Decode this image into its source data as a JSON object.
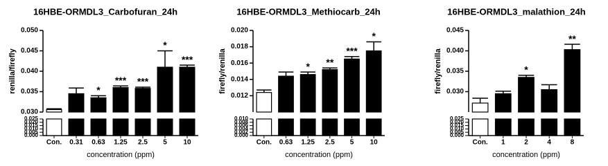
{
  "chart_data": [
    {
      "type": "bar",
      "title": "16HBE-ORMDL3_Carbofuran_24h",
      "x_label": "concentration (ppm)",
      "y_label": "renilla/firefly",
      "categories": [
        "Con.",
        "0.31",
        "0.63",
        "1.25",
        "2.5",
        "5",
        "10"
      ],
      "values": [
        0.0306,
        0.0345,
        0.0335,
        0.036,
        0.0358,
        0.041,
        0.041
      ],
      "errors": [
        0.0002,
        0.0014,
        0.0005,
        0.0004,
        0.0003,
        0.004,
        0.0005
      ],
      "annotations": [
        null,
        null,
        "*",
        "***",
        "***",
        "*",
        "***"
      ],
      "bar_colors": [
        "#ffffff",
        "#000000",
        "#000000",
        "#000000",
        "#000000",
        "#000000",
        "#000000"
      ],
      "ylim": [
        0.03,
        0.05
      ],
      "yticks": [
        {
          "value": 0.03,
          "label": "0.030"
        },
        {
          "value": 0.035,
          "label": "0.035"
        },
        {
          "value": 0.04,
          "label": "0.040"
        },
        {
          "value": 0.045,
          "label": "0.045"
        },
        {
          "value": 0.05,
          "label": "0.050"
        }
      ],
      "lower_ylim": [
        0,
        0.025
      ],
      "lower_yticks": [
        {
          "value": 0.025,
          "label": "0.025"
        },
        {
          "value": 0.02,
          "label": "0.020"
        },
        {
          "value": 0.015,
          "label": "0.015"
        },
        {
          "value": 0.01,
          "label": "0.010"
        },
        {
          "value": 0.005,
          "label": "0.005"
        },
        {
          "value": 0,
          "label": "0.000"
        }
      ]
    },
    {
      "type": "bar",
      "title": "16HBE-ORMDL3_Methiocarb_24h",
      "x_label": "concentration (ppm)",
      "y_label": "firefly/renilla",
      "categories": [
        "Con.",
        "0.63",
        "1.25",
        "2.5",
        "5",
        "10"
      ],
      "values": [
        0.0124,
        0.0144,
        0.0146,
        0.0152,
        0.0165,
        0.0175
      ],
      "errors": [
        0.0003,
        0.0005,
        0.0003,
        0.0002,
        0.0003,
        0.0011
      ],
      "annotations": [
        null,
        null,
        "*",
        "**",
        "***",
        "*"
      ],
      "bar_colors": [
        "#ffffff",
        "#000000",
        "#000000",
        "#000000",
        "#000000",
        "#000000"
      ],
      "ylim": [
        0.01,
        0.02
      ],
      "yticks": [
        {
          "value": 0.012,
          "label": "0.012"
        },
        {
          "value": 0.014,
          "label": "0.014"
        },
        {
          "value": 0.016,
          "label": "0.016"
        },
        {
          "value": 0.018,
          "label": "0.018"
        },
        {
          "value": 0.02,
          "label": "0.020"
        }
      ],
      "lower_ylim": [
        0,
        0.01
      ],
      "lower_yticks": [
        {
          "value": 0.01,
          "label": "0.010"
        },
        {
          "value": 0.008,
          "label": "0.008"
        },
        {
          "value": 0.006,
          "label": "0.006"
        },
        {
          "value": 0.004,
          "label": "0.004"
        },
        {
          "value": 0.002,
          "label": "0.002"
        },
        {
          "value": 0,
          "label": "0.000"
        }
      ]
    },
    {
      "type": "bar",
      "title": "16HBE-ORMDL3_malathion_24h",
      "x_label": "concentration (ppm)",
      "y_label": "firefly/renilla",
      "categories": [
        "Con.",
        "1",
        "2",
        "4",
        "8"
      ],
      "values": [
        0.0272,
        0.0295,
        0.0335,
        0.0305,
        0.0403
      ],
      "errors": [
        0.0012,
        0.0006,
        0.0005,
        0.0012,
        0.0013
      ],
      "annotations": [
        null,
        null,
        "*",
        null,
        "**"
      ],
      "bar_colors": [
        "#ffffff",
        "#000000",
        "#000000",
        "#000000",
        "#000000"
      ],
      "ylim": [
        0.025,
        0.045
      ],
      "yticks": [
        {
          "value": 0.03,
          "label": "0.030"
        },
        {
          "value": 0.035,
          "label": "0.035"
        },
        {
          "value": 0.04,
          "label": "0.040"
        },
        {
          "value": 0.045,
          "label": "0.045"
        }
      ],
      "lower_ylim": [
        0,
        0.025
      ],
      "lower_yticks": [
        {
          "value": 0.025,
          "label": "0.025"
        },
        {
          "value": 0.02,
          "label": "0.020"
        },
        {
          "value": 0.015,
          "label": "0.015"
        },
        {
          "value": 0.01,
          "label": "0.010"
        },
        {
          "value": 0.005,
          "label": "0.005"
        },
        {
          "value": 0,
          "label": "0.000"
        }
      ]
    }
  ]
}
